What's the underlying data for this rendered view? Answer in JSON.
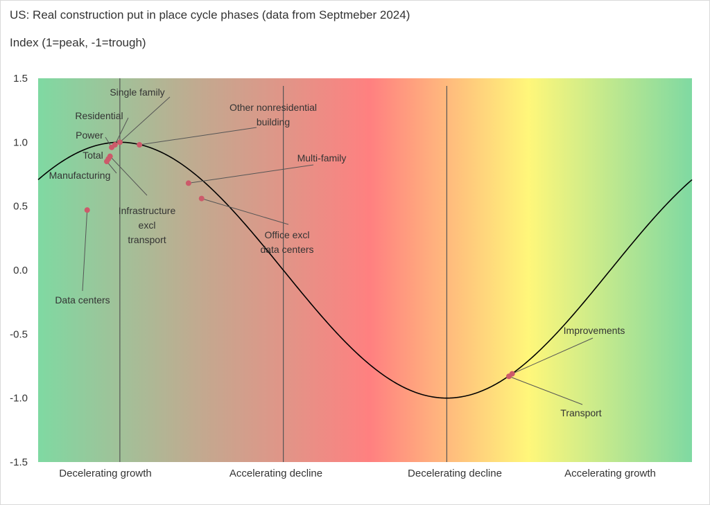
{
  "chart_data": {
    "type": "line",
    "title": "US: Real construction put in place cycle phases  (data from Septmeber 2024)",
    "subtitle": "Index (1=peak, -1=trough)",
    "ylim": [
      -1.5,
      1.5
    ],
    "xlim": [
      -0.25,
      1.75
    ],
    "y_ticks": [
      "1.5",
      "1.0",
      "0.5",
      "0.0",
      "-0.5",
      "-1.0",
      "-1.5"
    ],
    "y_tick_values": [
      1.5,
      1.0,
      0.5,
      0.0,
      -0.5,
      -1.0,
      -1.5
    ],
    "curve": "sine (peak at phase 0, trough at phase 1)",
    "phase_dividers": [
      0.0,
      0.5,
      1.0
    ],
    "phases": [
      "Decelerating growth",
      "Accelerating decline",
      "Decelerating decline",
      "Accelerating growth"
    ],
    "colors": {
      "green": "#7fd9a2",
      "tan": "#c4a88f",
      "red": "#ff8080",
      "yellow": "#fff77a",
      "curve": "#000000",
      "point": "#cc5a6a",
      "divider": "#555555"
    },
    "points": [
      {
        "name": "Data centers",
        "x": -0.1,
        "y": 0.47
      },
      {
        "name": "Manufacturing",
        "x": -0.04,
        "y": 0.85
      },
      {
        "name": "Total",
        "x": -0.035,
        "y": 0.87
      },
      {
        "name": "Infrastructure excl transport",
        "x": -0.03,
        "y": 0.89
      },
      {
        "name": "Power",
        "x": -0.025,
        "y": 0.96
      },
      {
        "name": "Residential",
        "x": -0.015,
        "y": 0.98
      },
      {
        "name": "Single family",
        "x": 0.0,
        "y": 1.0
      },
      {
        "name": "Other nonresidential building",
        "x": 0.06,
        "y": 0.98
      },
      {
        "name": "Multi-family",
        "x": 0.21,
        "y": 0.68
      },
      {
        "name": "Office excl data centers",
        "x": 0.25,
        "y": 0.56
      },
      {
        "name": "Transport",
        "x": 1.19,
        "y": -0.83
      },
      {
        "name": "Improvements",
        "x": 1.2,
        "y": -0.81
      }
    ],
    "labels": [
      {
        "text": "Single family",
        "point": 6
      },
      {
        "text": "Residential",
        "point": 5
      },
      {
        "text": "Power",
        "point": 4
      },
      {
        "text": "Total",
        "point": 2
      },
      {
        "text": "Manufacturing",
        "point": 1
      },
      {
        "lines": [
          "Infrastructure",
          "excl",
          "transport"
        ],
        "point": 3
      },
      {
        "text": "Data centers",
        "point": 0
      },
      {
        "lines": [
          "Other nonresidential",
          "building"
        ],
        "point": 7
      },
      {
        "text": "Multi-family",
        "point": 8
      },
      {
        "lines": [
          "Office excl",
          "data centers"
        ],
        "point": 9
      },
      {
        "text": "Improvements",
        "point": 11
      },
      {
        "text": "Transport",
        "point": 10
      }
    ]
  }
}
